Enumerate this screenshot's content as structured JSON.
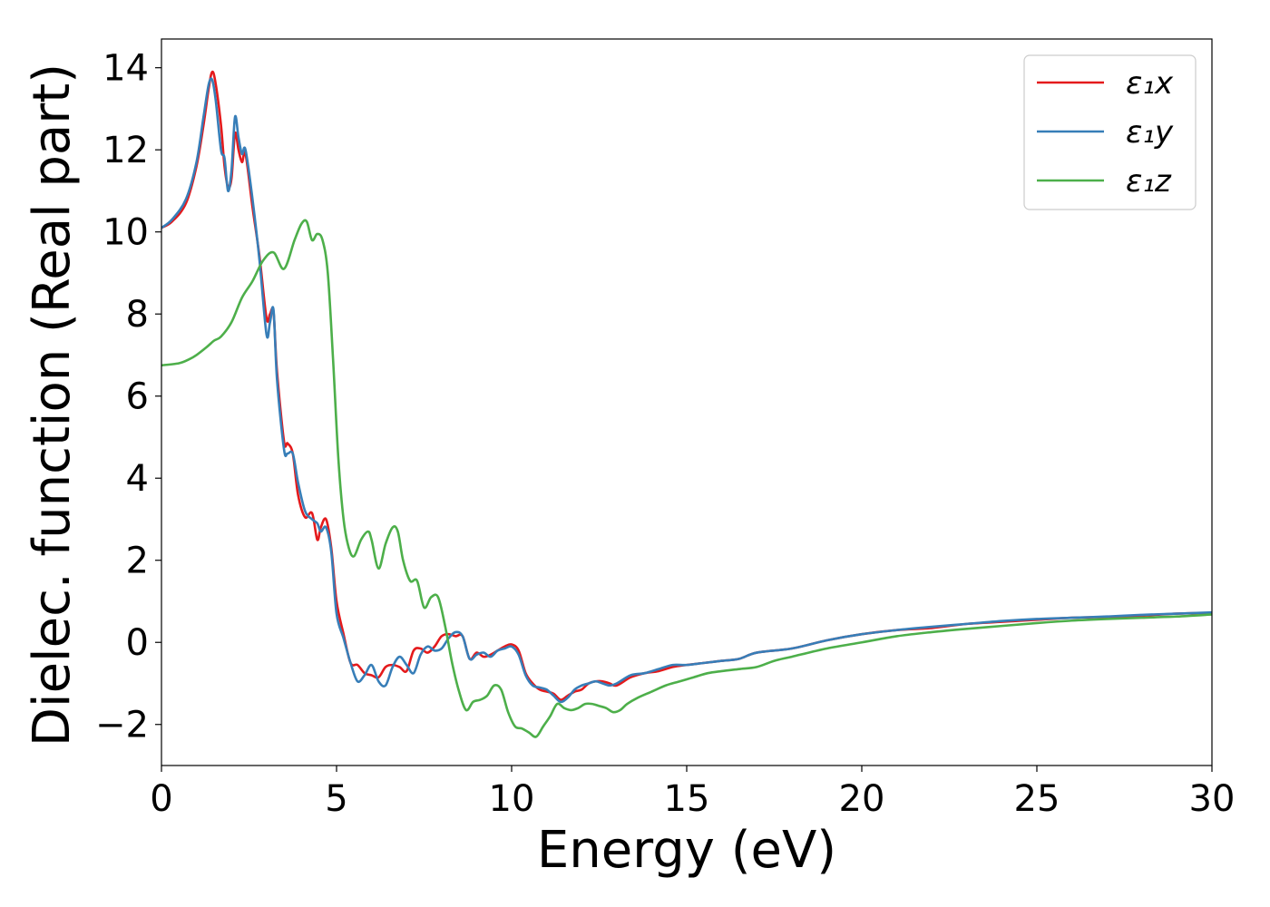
{
  "chart_data": {
    "type": "line",
    "xlabel": "Energy (eV)",
    "ylabel": "Dielec. function (Real part)",
    "xlim": [
      0,
      30
    ],
    "ylim": [
      -3,
      14.7
    ],
    "xticks": [
      0,
      5,
      10,
      15,
      20,
      25,
      30
    ],
    "xtick_labels": [
      "0",
      "5",
      "10",
      "15",
      "20",
      "25",
      "30"
    ],
    "yticks": [
      -2,
      0,
      2,
      4,
      6,
      8,
      10,
      12,
      14
    ],
    "ytick_labels": [
      "−2",
      "0",
      "2",
      "4",
      "6",
      "8",
      "10",
      "12",
      "14"
    ],
    "grid": false,
    "legend_position": "top-right",
    "series": [
      {
        "name": "ε₁x",
        "color": "#e41a1c",
        "x": [
          0,
          0.3,
          0.7,
          1.0,
          1.2,
          1.35,
          1.45,
          1.55,
          1.7,
          1.8,
          1.9,
          2.0,
          2.1,
          2.2,
          2.3,
          2.4,
          2.6,
          2.8,
          3.0,
          3.1,
          3.2,
          3.3,
          3.5,
          3.6,
          3.75,
          3.9,
          4.1,
          4.3,
          4.45,
          4.55,
          4.7,
          4.85,
          5.0,
          5.2,
          5.4,
          5.6,
          5.8,
          6.0,
          6.2,
          6.4,
          6.6,
          6.8,
          7.0,
          7.2,
          7.4,
          7.6,
          7.8,
          8.0,
          8.2,
          8.4,
          8.6,
          8.8,
          9.0,
          9.2,
          9.4,
          9.6,
          9.8,
          10.0,
          10.2,
          10.4,
          10.6,
          10.8,
          11.0,
          11.2,
          11.4,
          11.6,
          11.8,
          12.0,
          12.2,
          12.4,
          12.6,
          12.8,
          13.0,
          13.4,
          13.8,
          14.2,
          14.6,
          15.0,
          15.5,
          16.0,
          16.5,
          17.0,
          18.0,
          19.0,
          20.0,
          21.0,
          22.0,
          23.0,
          24.0,
          25.0,
          26.0,
          27.0,
          28.0,
          29.0,
          30.0
        ],
        "values": [
          10.1,
          10.25,
          10.7,
          11.6,
          12.6,
          13.5,
          13.9,
          13.6,
          12.6,
          11.6,
          11.1,
          11.3,
          12.4,
          12.0,
          11.7,
          11.9,
          10.6,
          9.4,
          7.9,
          8.0,
          8.05,
          6.6,
          4.9,
          4.85,
          4.6,
          3.6,
          3.05,
          3.15,
          2.5,
          2.8,
          3.0,
          2.3,
          1.0,
          0.2,
          -0.5,
          -0.55,
          -0.75,
          -0.8,
          -0.85,
          -0.6,
          -0.55,
          -0.6,
          -0.7,
          -0.2,
          -0.15,
          -0.25,
          -0.1,
          0.15,
          0.2,
          0.15,
          0.15,
          -0.4,
          -0.25,
          -0.35,
          -0.3,
          -0.2,
          -0.1,
          -0.05,
          -0.2,
          -0.75,
          -1.0,
          -1.15,
          -1.2,
          -1.25,
          -1.4,
          -1.3,
          -1.2,
          -1.15,
          -1.0,
          -0.95,
          -0.95,
          -1.0,
          -1.05,
          -0.85,
          -0.75,
          -0.7,
          -0.6,
          -0.55,
          -0.5,
          -0.45,
          -0.4,
          -0.25,
          -0.15,
          0.05,
          0.2,
          0.3,
          0.35,
          0.45,
          0.5,
          0.55,
          0.6,
          0.62,
          0.65,
          0.7,
          0.72
        ]
      },
      {
        "name": "ε₁y",
        "color": "#377eb8",
        "x": [
          0,
          0.3,
          0.7,
          1.0,
          1.2,
          1.35,
          1.45,
          1.55,
          1.7,
          1.8,
          1.9,
          2.0,
          2.1,
          2.2,
          2.3,
          2.4,
          2.6,
          2.8,
          3.0,
          3.1,
          3.2,
          3.3,
          3.5,
          3.6,
          3.75,
          3.9,
          4.1,
          4.3,
          4.45,
          4.55,
          4.7,
          4.85,
          5.0,
          5.2,
          5.4,
          5.6,
          5.8,
          6.0,
          6.2,
          6.4,
          6.6,
          6.8,
          7.0,
          7.2,
          7.4,
          7.6,
          7.8,
          8.0,
          8.2,
          8.4,
          8.6,
          8.8,
          9.0,
          9.2,
          9.4,
          9.6,
          9.8,
          10.0,
          10.2,
          10.4,
          10.6,
          10.8,
          11.0,
          11.2,
          11.4,
          11.6,
          11.8,
          12.0,
          12.2,
          12.4,
          12.6,
          12.8,
          13.0,
          13.4,
          13.8,
          14.2,
          14.6,
          15.0,
          15.5,
          16.0,
          16.5,
          17.0,
          18.0,
          19.0,
          20.0,
          21.0,
          22.0,
          23.0,
          24.0,
          25.0,
          26.0,
          27.0,
          28.0,
          29.0,
          30.0
        ],
        "values": [
          10.1,
          10.3,
          10.8,
          11.7,
          12.8,
          13.6,
          13.7,
          13.2,
          12.0,
          11.8,
          11.0,
          11.5,
          12.8,
          12.3,
          11.9,
          12.0,
          10.8,
          9.3,
          7.5,
          7.8,
          8.1,
          6.4,
          4.7,
          4.6,
          4.6,
          3.9,
          3.2,
          3.0,
          2.9,
          2.7,
          2.8,
          2.2,
          0.7,
          0.1,
          -0.5,
          -0.95,
          -0.8,
          -0.55,
          -0.95,
          -1.05,
          -0.6,
          -0.35,
          -0.55,
          -0.75,
          -0.3,
          -0.1,
          -0.2,
          -0.15,
          0.1,
          0.25,
          0.15,
          -0.4,
          -0.3,
          -0.25,
          -0.35,
          -0.2,
          -0.15,
          -0.1,
          -0.3,
          -0.8,
          -1.05,
          -1.1,
          -1.15,
          -1.3,
          -1.45,
          -1.35,
          -1.15,
          -1.05,
          -1.0,
          -0.95,
          -1.0,
          -1.05,
          -1.0,
          -0.8,
          -0.75,
          -0.65,
          -0.55,
          -0.55,
          -0.5,
          -0.45,
          -0.4,
          -0.25,
          -0.15,
          0.05,
          0.2,
          0.3,
          0.38,
          0.45,
          0.52,
          0.57,
          0.6,
          0.63,
          0.67,
          0.7,
          0.73
        ]
      },
      {
        "name": "ε₁z",
        "color": "#4daf4a",
        "x": [
          0,
          0.5,
          0.8,
          1.0,
          1.3,
          1.5,
          1.7,
          2.0,
          2.3,
          2.6,
          2.9,
          3.2,
          3.5,
          3.8,
          4.0,
          4.15,
          4.3,
          4.45,
          4.6,
          4.75,
          4.9,
          5.05,
          5.2,
          5.35,
          5.5,
          5.7,
          5.9,
          6.0,
          6.2,
          6.4,
          6.6,
          6.75,
          6.9,
          7.1,
          7.3,
          7.5,
          7.7,
          7.9,
          8.1,
          8.3,
          8.5,
          8.7,
          8.9,
          9.1,
          9.3,
          9.5,
          9.7,
          9.9,
          10.1,
          10.3,
          10.5,
          10.7,
          10.9,
          11.1,
          11.3,
          11.5,
          11.7,
          11.9,
          12.1,
          12.3,
          12.5,
          12.7,
          12.9,
          13.1,
          13.3,
          13.6,
          14.0,
          14.4,
          14.8,
          15.2,
          15.6,
          16.0,
          16.5,
          17.0,
          17.5,
          18.0,
          19.0,
          20.0,
          21.0,
          22.0,
          23.0,
          24.0,
          25.0,
          26.0,
          27.0,
          28.0,
          29.0,
          30.0
        ],
        "values": [
          6.75,
          6.8,
          6.9,
          7.0,
          7.2,
          7.35,
          7.45,
          7.8,
          8.4,
          8.8,
          9.3,
          9.5,
          9.1,
          9.8,
          10.2,
          10.25,
          9.8,
          9.95,
          9.8,
          9.0,
          6.9,
          4.5,
          3.0,
          2.3,
          2.1,
          2.5,
          2.7,
          2.5,
          1.8,
          2.4,
          2.8,
          2.7,
          2.0,
          1.5,
          1.5,
          0.85,
          1.1,
          1.1,
          0.4,
          -0.5,
          -1.2,
          -1.65,
          -1.45,
          -1.4,
          -1.3,
          -1.05,
          -1.15,
          -1.7,
          -2.05,
          -2.1,
          -2.2,
          -2.3,
          -2.05,
          -1.8,
          -1.5,
          -1.6,
          -1.65,
          -1.6,
          -1.5,
          -1.5,
          -1.55,
          -1.6,
          -1.7,
          -1.65,
          -1.5,
          -1.35,
          -1.2,
          -1.05,
          -0.95,
          -0.85,
          -0.75,
          -0.7,
          -0.65,
          -0.6,
          -0.45,
          -0.35,
          -0.15,
          0.0,
          0.15,
          0.25,
          0.33,
          0.4,
          0.47,
          0.53,
          0.57,
          0.6,
          0.63,
          0.68
        ]
      }
    ]
  }
}
